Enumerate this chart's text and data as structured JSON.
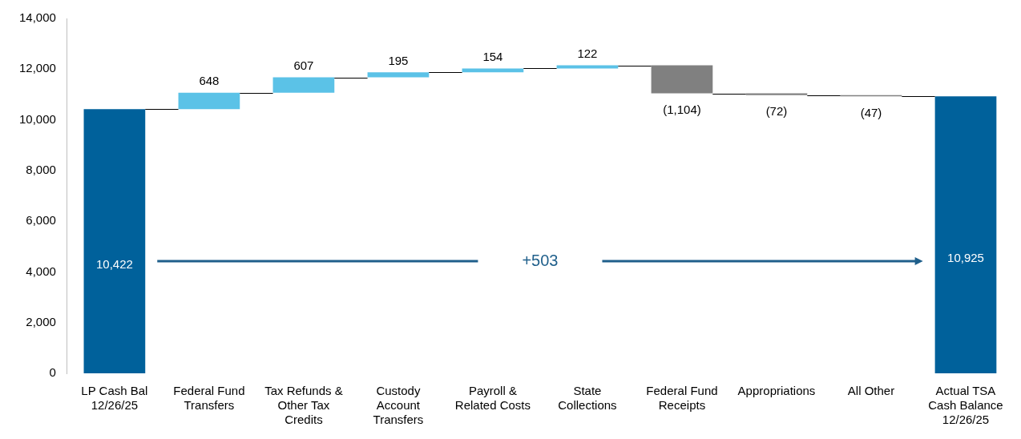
{
  "chart_data": {
    "type": "bar",
    "categories": [
      "LP Cash Bal 12/26/25",
      "Federal Fund Transfers",
      "Tax Refunds & Other Tax Credits",
      "Custody Account Transfers",
      "Payroll & Related Costs",
      "State Collections",
      "Federal Fund Receipts",
      "Appropriations",
      "All Other",
      "Actual TSA Cash Balance 12/26/25"
    ],
    "values": [
      10422,
      648,
      607,
      195,
      154,
      122,
      -1104,
      -72,
      -47,
      10925
    ],
    "base": [
      0,
      10422,
      11070,
      11677,
      11872,
      12026,
      12148,
      11044,
      10972,
      0
    ],
    "colors": [
      "#00619b",
      "#5bc2e7",
      "#5bc2e7",
      "#5bc2e7",
      "#5bc2e7",
      "#5bc2e7",
      "#808080",
      "#808080",
      "#808080",
      "#00619b"
    ],
    "value_labels": [
      "10,422",
      "648",
      "607",
      "195",
      "154",
      "122",
      "(1,104)",
      "(72)",
      "(47)",
      "10,925"
    ],
    "ylim": [
      0,
      14000
    ],
    "yticks": [
      0,
      {
        "value": 2000,
        "label": "2,000"
      },
      {
        "value": 4000,
        "label": "4,000"
      },
      {
        "value": 6000,
        "label": "6,000"
      },
      {
        "value": 8000,
        "label": "8,000"
      },
      {
        "value": 10000,
        "label": "10,000"
      },
      {
        "value": 12000,
        "label": "12,000"
      },
      {
        "value": 14000,
        "label": "14,000"
      }
    ],
    "grid": false,
    "legend": false,
    "annotations": [
      "+503"
    ]
  }
}
